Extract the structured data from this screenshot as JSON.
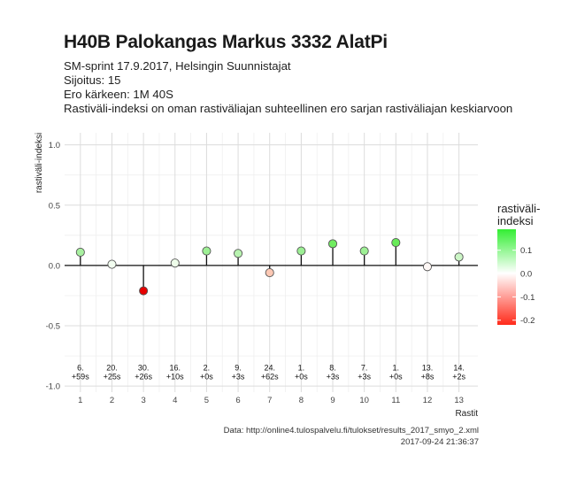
{
  "header": {
    "title": "H40B Palokangas Markus 3332 AlatPi",
    "line1": "SM-sprint 17.9.2017, Helsingin Suunnistajat",
    "line2": "Sijoitus: 15",
    "line3": "Ero kärkeen: 1M 40S",
    "line4": "Rastiväli-indeksi on oman rastiväliajan suhteellinen ero sarjan rastiväliajan keskiarvoon"
  },
  "caption": {
    "source": "Data: http://online4.tulospalvelu.fi/tulokset/results_2017_smyo_2.xml",
    "timestamp": "2017-09-24 21:36:37"
  },
  "chart_data": {
    "type": "scatter",
    "title": "H40B Palokangas Markus 3332 AlatPi",
    "xlabel": "Rastit",
    "ylabel": "rastiväli-indeksi",
    "xlim": [
      0.5,
      13.6
    ],
    "ylim": [
      -1.05,
      1.1
    ],
    "x_ticks": [
      1,
      2,
      3,
      4,
      5,
      6,
      7,
      8,
      9,
      10,
      11,
      12,
      13
    ],
    "y_ticks": [
      1.0,
      0.5,
      0.0,
      -0.5,
      -1.0
    ],
    "y_tick_labels": [
      "1.0",
      "0.5",
      "0.0",
      "-0.5",
      "-1.0"
    ],
    "grid": true,
    "x": [
      1,
      2,
      3,
      4,
      5,
      6,
      7,
      8,
      9,
      10,
      11,
      12,
      13
    ],
    "values": [
      0.11,
      0.01,
      -0.21,
      0.02,
      0.12,
      0.1,
      -0.06,
      0.12,
      0.18,
      0.12,
      0.19,
      -0.01,
      0.07
    ],
    "rank_labels": [
      "6.",
      "20.",
      "30.",
      "16.",
      "2.",
      "9.",
      "24.",
      "1.",
      "8.",
      "7.",
      "1.",
      "13.",
      "14."
    ],
    "time_labels": [
      "+59s",
      "+25s",
      "+26s",
      "+10s",
      "+0s",
      "+3s",
      "+62s",
      "+0s",
      "+3s",
      "+3s",
      "+0s",
      "+8s",
      "+2s"
    ],
    "colors": [
      "#a8f0a0",
      "#f2fdf0",
      "#e60000",
      "#eefdea",
      "#9ef095",
      "#b8f3b0",
      "#fcc8b4",
      "#9cef94",
      "#70ec60",
      "#9ef095",
      "#68eb58",
      "#fdf7f5",
      "#ccf6c6"
    ],
    "legend": {
      "title": "rastiväli-indeksi",
      "title_lines": [
        "rastiväli-",
        "indeksi"
      ],
      "position": "right",
      "range": [
        -0.22,
        0.19
      ],
      "ticks": [
        0.1,
        0.0,
        -0.1,
        -0.2
      ],
      "tick_labels": [
        "0.1",
        "0.0",
        "-0.1",
        "-0.2"
      ],
      "high_color": "#33ee33",
      "mid_color": "#ffffff",
      "low_color": "#ff2a1a"
    }
  }
}
